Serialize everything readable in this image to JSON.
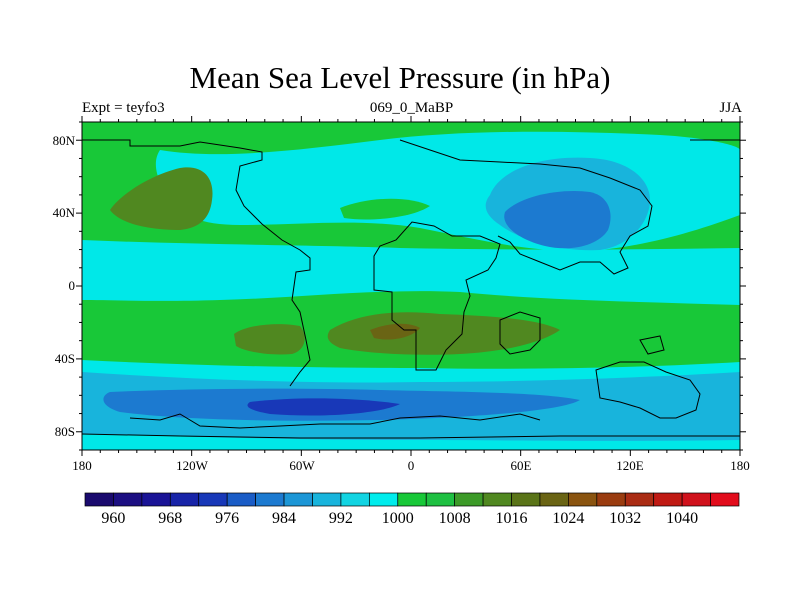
{
  "title": "Mean Sea Level Pressure (in hPa)",
  "left_label": "Expt = teyfo3",
  "center_label": "069_0_MaBP",
  "right_label": "JJA",
  "lat_labels": [
    "80N",
    "40N",
    "0",
    "40S",
    "80S"
  ],
  "lon_labels": [
    "180",
    "120W",
    "60W",
    "0",
    "60E",
    "120E",
    "180"
  ],
  "colorbar_labels": [
    "960",
    "968",
    "976",
    "984",
    "992",
    "1000",
    "1008",
    "1016",
    "1024",
    "1032",
    "1040"
  ],
  "colorbar_colors": [
    "#1a0a6e",
    "#1c0f82",
    "#1a1496",
    "#1824a8",
    "#1838b8",
    "#1a5cc6",
    "#1c7ad0",
    "#1c96d6",
    "#18b4dc",
    "#12d4e2",
    "#00ecec",
    "#18c838",
    "#1ec042",
    "#3c9a28",
    "#508820",
    "#5a7418",
    "#6a6414",
    "#8a5410",
    "#9a3c10",
    "#aa2c14",
    "#c01a14",
    "#d0121c",
    "#e20c1c"
  ]
}
